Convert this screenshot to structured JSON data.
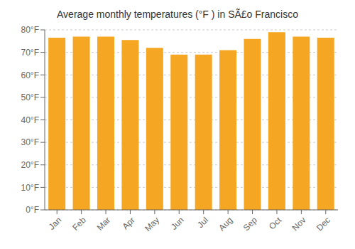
{
  "chart_data": {
    "type": "bar",
    "title": "Average monthly temperatures (°F ) in SÃ£o Francisco",
    "categories": [
      "Jan",
      "Feb",
      "Mar",
      "Apr",
      "May",
      "Jun",
      "Jul",
      "Aug",
      "Sep",
      "Oct",
      "Nov",
      "Dec"
    ],
    "values": [
      76.5,
      77.0,
      77.0,
      75.5,
      72.0,
      69.0,
      69.0,
      71.0,
      76.0,
      79.0,
      77.0,
      76.5
    ],
    "color": "#F5A623",
    "ylim": [
      0,
      80
    ],
    "yticks": [
      {
        "value": 0,
        "label": "0°F"
      },
      {
        "value": 10,
        "label": "10°F"
      },
      {
        "value": 20,
        "label": "20°F"
      },
      {
        "value": 30,
        "label": "30°F"
      },
      {
        "value": 40,
        "label": "40°F"
      },
      {
        "value": 50,
        "label": "50°F"
      },
      {
        "value": 60,
        "label": "60°F"
      },
      {
        "value": 70,
        "label": "70°F"
      },
      {
        "value": 80,
        "label": "80°F"
      }
    ],
    "grid": true
  }
}
